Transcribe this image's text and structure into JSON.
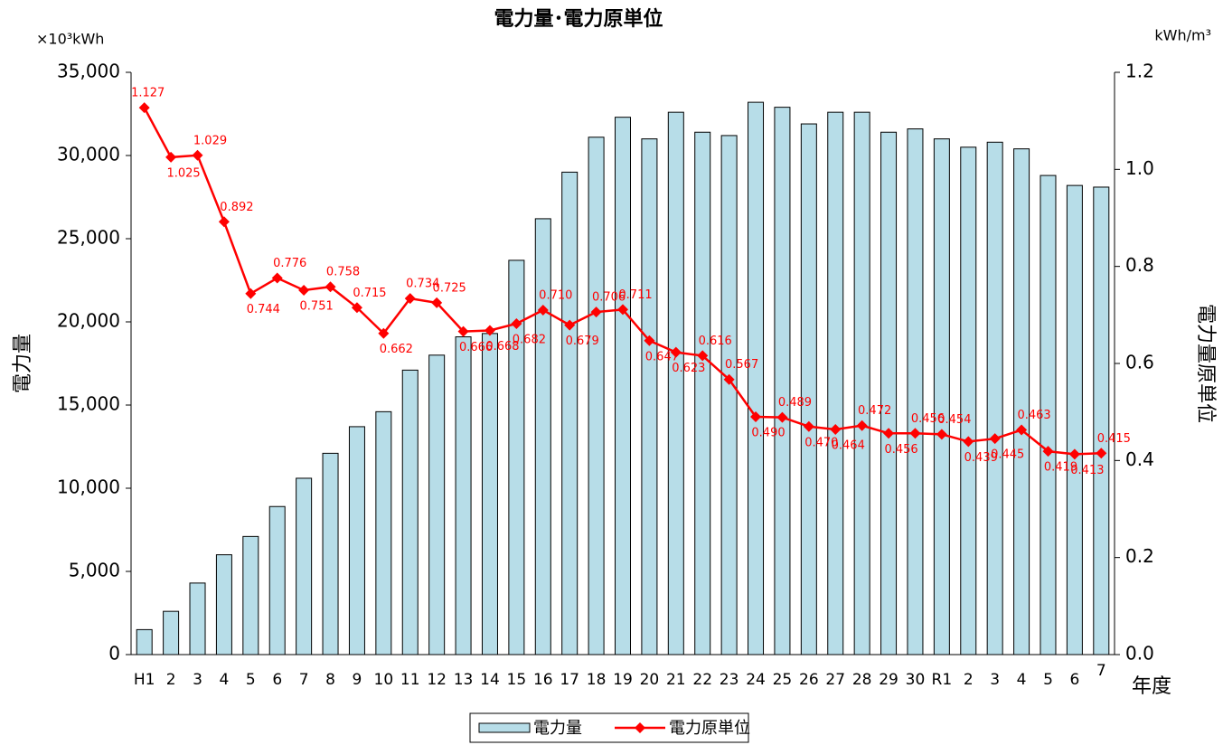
{
  "chart_data": {
    "type": "bar_line",
    "title": "電力量･電力原単位",
    "y_unit": "×10³kWh",
    "y2_unit": "kWh/m³",
    "y_label": "電力量",
    "y2_label": "電力量原単位",
    "x_label": "年度",
    "categories": [
      "H1",
      "2",
      "3",
      "4",
      "5",
      "6",
      "7",
      "8",
      "9",
      "10",
      "11",
      "12",
      "13",
      "14",
      "15",
      "16",
      "17",
      "18",
      "19",
      "20",
      "21",
      "22",
      "23",
      "24",
      "25",
      "26",
      "27",
      "28",
      "29",
      "30",
      "R1",
      "2",
      "3",
      "4",
      "5",
      "6",
      "7"
    ],
    "series": [
      {
        "name": "電力量",
        "type": "bar",
        "color": "#b7dde8",
        "values": [
          1500,
          2600,
          4300,
          6000,
          7100,
          8900,
          10600,
          12100,
          13700,
          14600,
          17100,
          18000,
          19100,
          19300,
          23700,
          26200,
          29000,
          31100,
          32300,
          31000,
          32600,
          31400,
          31200,
          33200,
          32900,
          31900,
          32600,
          32600,
          31400,
          31600,
          31000,
          30500,
          30800,
          30400,
          28800,
          28200,
          28100
        ]
      },
      {
        "name": "電力原単位",
        "type": "line",
        "axis": "y2",
        "color": "#ff0000",
        "values": [
          1.127,
          1.025,
          1.029,
          0.892,
          0.744,
          0.776,
          0.751,
          0.758,
          0.715,
          0.662,
          0.734,
          0.725,
          0.666,
          0.668,
          0.682,
          0.71,
          0.679,
          0.706,
          0.711,
          0.647,
          0.623,
          0.616,
          0.567,
          0.49,
          0.489,
          0.47,
          0.464,
          0.472,
          0.456,
          0.456,
          0.454,
          0.439,
          0.445,
          0.463,
          0.419,
          0.413,
          0.415
        ],
        "value_labels": [
          "1.127",
          "1.025",
          "1.029",
          "0.892",
          "0.744",
          "0.776",
          "0.751",
          "0.758",
          "0.715",
          "0.662",
          "0.734",
          "0.725",
          "0.666",
          "0.668",
          "0.682",
          "0.710",
          "0.679",
          "0.706",
          "0.711",
          "0.647",
          "0.623",
          "0.616",
          "0.567",
          "0.490",
          "0.489",
          "0.470",
          "0.464",
          "0.472",
          "0.456",
          "0.456",
          "0.454",
          "0.439",
          "0.445",
          "0.463",
          "0.419",
          "0.413",
          "0.415"
        ]
      }
    ],
    "ylim": [
      0,
      35000
    ],
    "yticks": [
      {
        "value": 0,
        "label": "0"
      },
      {
        "value": 5000,
        "label": "5,000"
      },
      {
        "value": 10000,
        "label": "10,000"
      },
      {
        "value": 15000,
        "label": "15,000"
      },
      {
        "value": 20000,
        "label": "20,000"
      },
      {
        "value": 25000,
        "label": "25,000"
      },
      {
        "value": 30000,
        "label": "30,000"
      },
      {
        "value": 35000,
        "label": "35,000"
      }
    ],
    "y2lim": [
      0,
      1.2
    ],
    "y2ticks": [
      {
        "value": 0,
        "label": "0.0"
      },
      0.2,
      0.4,
      0.6,
      0.8,
      {
        "value": 1,
        "label": "1.0"
      },
      1.2
    ],
    "grid": false,
    "legend": "bottom"
  }
}
